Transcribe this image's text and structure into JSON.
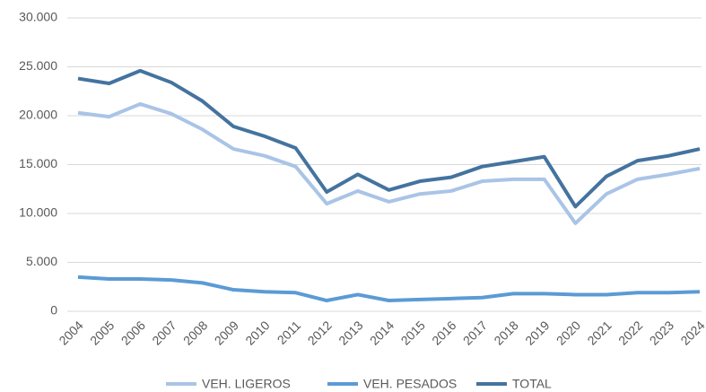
{
  "chart_data": {
    "type": "line",
    "categories": [
      "2004",
      "2005",
      "2006",
      "2007",
      "2008",
      "2009",
      "2010",
      "2011",
      "2012",
      "2013",
      "2014",
      "2015",
      "2016",
      "2017",
      "2018",
      "2019",
      "2020",
      "2021",
      "2022",
      "2023",
      "2024"
    ],
    "series": [
      {
        "name": "VEH. LIGEROS",
        "color": "#a9c4e6",
        "values": [
          20300,
          19900,
          21200,
          20200,
          18600,
          16600,
          15900,
          14800,
          11000,
          12300,
          11200,
          12000,
          12300,
          13300,
          13500,
          13500,
          9000,
          12000,
          13500,
          14000,
          14600
        ]
      },
      {
        "name": "VEH. PESADOS",
        "color": "#5b9bd5",
        "values": [
          3500,
          3300,
          3300,
          3200,
          2900,
          2200,
          2000,
          1900,
          1100,
          1700,
          1100,
          1200,
          1300,
          1400,
          1800,
          1800,
          1700,
          1700,
          1900,
          1900,
          2000
        ]
      },
      {
        "name": "TOTAL",
        "color": "#44739f",
        "values": [
          23800,
          23300,
          24600,
          23400,
          21500,
          18900,
          17900,
          16700,
          12200,
          14000,
          12400,
          13300,
          13700,
          14800,
          15300,
          15800,
          10700,
          13800,
          15400,
          15900,
          16600
        ]
      }
    ],
    "ylim": [
      0,
      30000
    ],
    "yticks": [
      0,
      {
        "value": 5000,
        "label": "5.000"
      },
      {
        "value": 10000,
        "label": "10.000"
      },
      {
        "value": 15000,
        "label": "15.000"
      },
      {
        "value": 20000,
        "label": "20.000"
      },
      {
        "value": 25000,
        "label": "25.000"
      },
      {
        "value": 30000,
        "label": "30.000"
      }
    ],
    "grid": true,
    "legend": "bottom"
  }
}
